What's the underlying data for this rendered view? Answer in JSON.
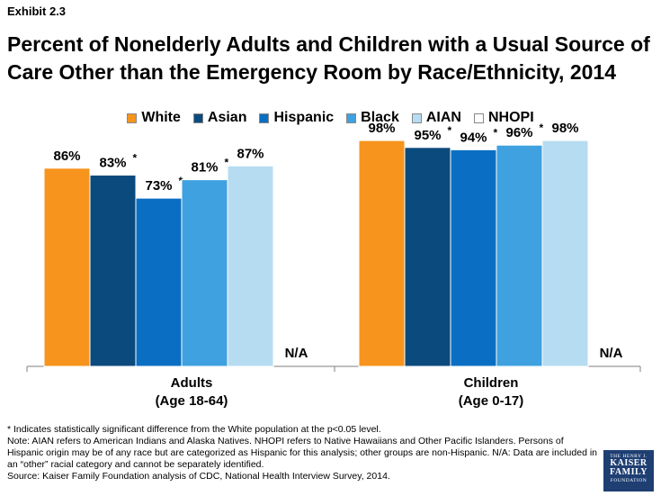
{
  "exhibit": "Exhibit 2.3",
  "title_line1": "Percent of Nonelderly Adults and Children with a Usual Source of",
  "title_line2": "Care Other than the Emergency Room by Race/Ethnicity, 2014",
  "logo": {
    "line1": "THE HENRY J.",
    "line2a": "KAISER",
    "line2b": "FAMILY",
    "line3": "FOUNDATION"
  },
  "footnotes": [
    "* Indicates statistically significant difference from the White population at the p<0.05 level.",
    "Note: AIAN refers to American Indians and Alaska Natives. NHOPI refers to Native Hawaiians and Other Pacific Islanders. Persons of Hispanic origin may be of any race but are categorized as Hispanic for this analysis; other groups are non-Hispanic. N/A: Data are included in an “other” racial category and cannot be separately identified.",
    "Source: Kaiser Family Foundation analysis of CDC, National Health Interview Survey, 2014."
  ],
  "chart_data": {
    "type": "bar",
    "title": "Percent of Nonelderly Adults and Children with a Usual Source of Care Other than the Emergency Room by Race/Ethnicity, 2014",
    "ylim": [
      0,
      100
    ],
    "grid": false,
    "legend_position": "top",
    "categories": [
      {
        "line1": "Adults",
        "line2": "(Age 18-64)"
      },
      {
        "line1": "Children",
        "line2": "(Age 0-17)"
      }
    ],
    "series": [
      {
        "name": "White",
        "color": "#f7941d",
        "values": [
          86,
          98
        ],
        "labels": [
          "86%",
          "98%"
        ],
        "significant": [
          false,
          false
        ]
      },
      {
        "name": "Asian",
        "color": "#0b4a7d",
        "values": [
          83,
          95
        ],
        "labels": [
          "83%",
          "95%"
        ],
        "significant": [
          true,
          true
        ]
      },
      {
        "name": "Hispanic",
        "color": "#0a6fc2",
        "values": [
          73,
          94
        ],
        "labels": [
          "73%",
          "94%"
        ],
        "significant": [
          true,
          true
        ]
      },
      {
        "name": "Black",
        "color": "#3fa1e0",
        "values": [
          81,
          96
        ],
        "labels": [
          "81%",
          "96%"
        ],
        "significant": [
          true,
          true
        ]
      },
      {
        "name": "AIAN",
        "color": "#b6dcf2",
        "values": [
          87,
          98
        ],
        "labels": [
          "87%",
          "98%"
        ],
        "significant": [
          false,
          false
        ]
      },
      {
        "name": "NHOPI",
        "color": "#ffffff",
        "values": [
          null,
          null
        ],
        "labels": [
          "N/A",
          "N/A"
        ],
        "significant": [
          false,
          false
        ]
      }
    ]
  }
}
